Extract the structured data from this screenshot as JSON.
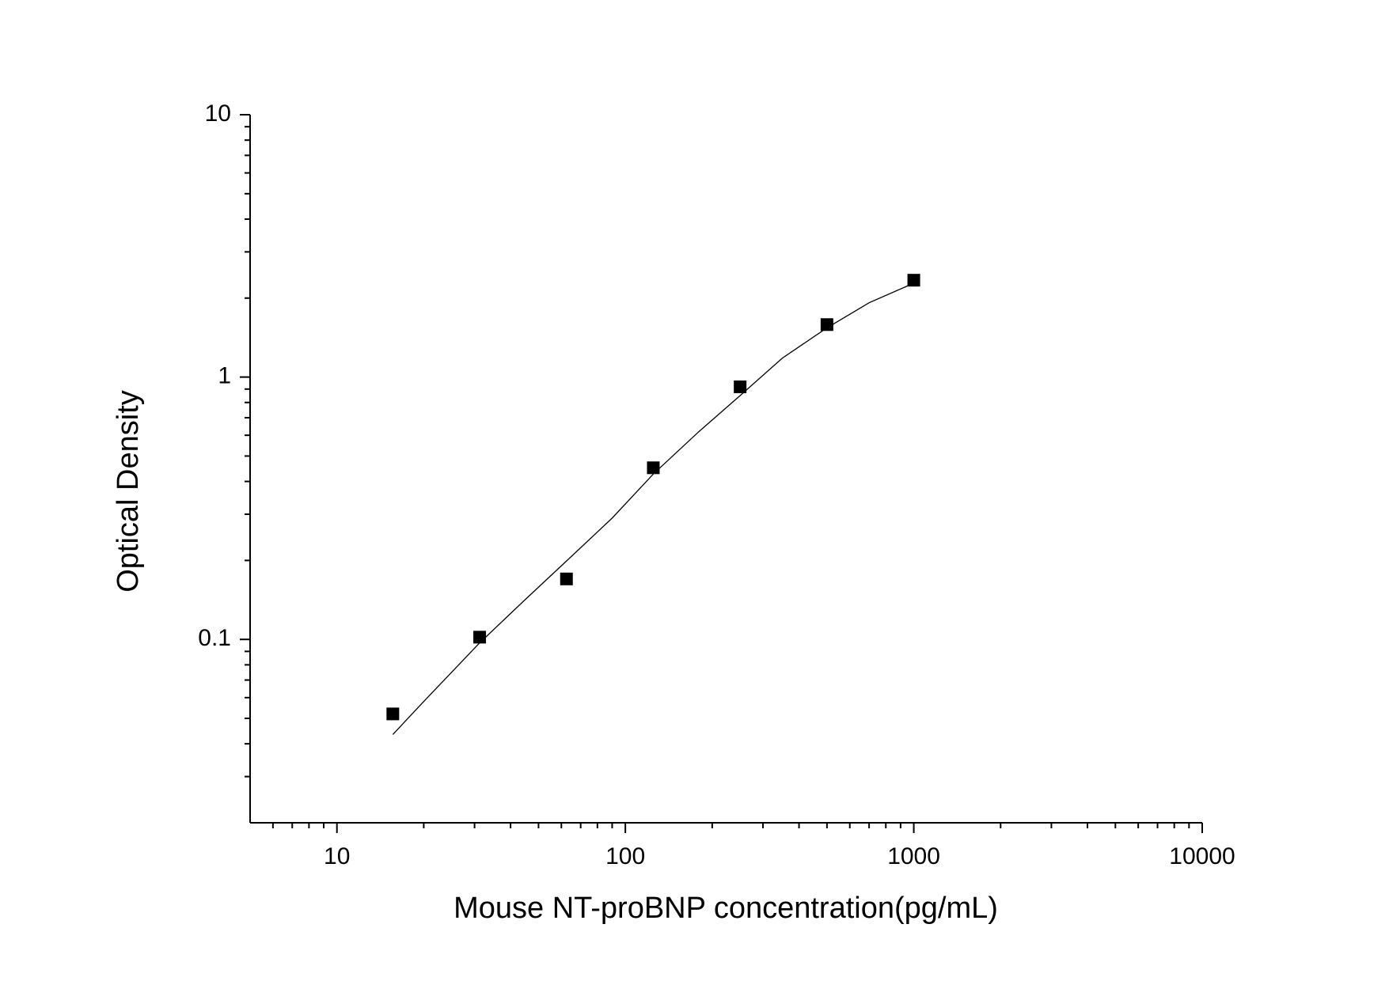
{
  "chart_data": {
    "type": "scatter",
    "xlabel": "Mouse NT-proBNP concentration(pg/mL)",
    "ylabel": "Optical Density",
    "xscale": "log",
    "yscale": "log",
    "xlim": [
      5,
      10000
    ],
    "ylim": [
      0.02,
      10
    ],
    "xticks": [
      10,
      100,
      1000,
      10000
    ],
    "yticks": [
      0.1,
      1,
      10
    ],
    "xminorticks": [
      6,
      7,
      8,
      9,
      20,
      30,
      40,
      50,
      60,
      70,
      80,
      90,
      200,
      300,
      400,
      500,
      600,
      700,
      800,
      900,
      2000,
      3000,
      4000,
      5000,
      6000,
      7000,
      8000,
      9000
    ],
    "yminorticks": [
      0.03,
      0.04,
      0.05,
      0.06,
      0.07,
      0.08,
      0.09,
      0.2,
      0.3,
      0.4,
      0.5,
      0.6,
      0.7,
      0.8,
      0.9,
      2,
      3,
      4,
      5,
      6,
      7,
      8,
      9
    ],
    "color": "#000000",
    "x": [
      15.625,
      31.25,
      62.5,
      125,
      250,
      500,
      1000
    ],
    "values": [
      0.052,
      0.102,
      0.17,
      0.451,
      0.918,
      1.585,
      2.34
    ],
    "curve": {
      "x": [
        15.625,
        20,
        31.25,
        45,
        62.5,
        90,
        125,
        180,
        250,
        350,
        500,
        700,
        1000
      ],
      "values": [
        0.0434,
        0.058,
        0.097,
        0.142,
        0.199,
        0.29,
        0.427,
        0.62,
        0.85,
        1.18,
        1.54,
        1.92,
        2.28
      ]
    }
  }
}
